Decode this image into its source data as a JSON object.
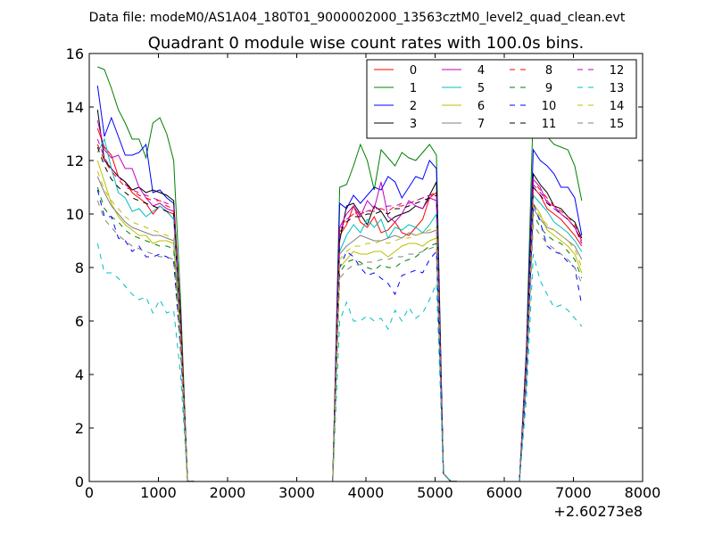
{
  "suptitle": "Data file: modeM0/AS1A04_180T01_9000002000_13563cztM0_level2_quad_clean.evt",
  "chart_data": {
    "type": "line",
    "title": "Quadrant 0 module wise count rates with 100.0s bins.",
    "xlabel": "",
    "ylabel": "",
    "x_offset_label": "+2.60273e8",
    "xlim": [
      0,
      8000
    ],
    "ylim": [
      0,
      16
    ],
    "x_ticks": [
      0,
      1000,
      2000,
      3000,
      4000,
      5000,
      6000,
      7000,
      8000
    ],
    "y_ticks": [
      0,
      2,
      4,
      6,
      8,
      10,
      12,
      14,
      16
    ],
    "grid": false,
    "legend_position": "top-right",
    "legend_columns": 4,
    "x": [
      120,
      220,
      320,
      420,
      520,
      620,
      720,
      820,
      920,
      1020,
      1120,
      1220,
      1320,
      1420,
      1520,
      1620,
      1720,
      1820,
      1920,
      2020,
      2120,
      2220,
      2320,
      2420,
      2520,
      2620,
      2720,
      2820,
      2920,
      3020,
      3120,
      3220,
      3320,
      3420,
      3520,
      3620,
      3720,
      3820,
      3920,
      4020,
      4120,
      4220,
      4320,
      4420,
      4520,
      4620,
      4720,
      4820,
      4920,
      5020,
      5120,
      5220,
      5320,
      5420,
      5520,
      5620,
      5720,
      5820,
      5920,
      6020,
      6120,
      6220,
      6320,
      6420,
      6520,
      6620,
      6720,
      6820,
      6920,
      7020,
      7120
    ],
    "series": [
      {
        "name": "0",
        "color": "#ff0000",
        "dash": "solid",
        "values": [
          13.2,
          12.5,
          12.2,
          11.4,
          11.2,
          10.8,
          10.6,
          10.4,
          10.0,
          10.3,
          10.1,
          10.0,
          6.0,
          0.02,
          0,
          0,
          0,
          0,
          0,
          0,
          0,
          0,
          0,
          0,
          0,
          0,
          0,
          0,
          0,
          0,
          0,
          0,
          0,
          0,
          0,
          9.2,
          9.6,
          10.3,
          9.7,
          9.5,
          9.9,
          9.3,
          9.4,
          9.7,
          9.3,
          9.2,
          9.5,
          9.8,
          10.6,
          10.8,
          0.3,
          0.02,
          0,
          0,
          0,
          0,
          0,
          0,
          0,
          0,
          0,
          0,
          4.5,
          11.0,
          10.7,
          10.2,
          10.0,
          9.8,
          9.5,
          9.2,
          8.8
        ]
      },
      {
        "name": "1",
        "color": "#008000",
        "dash": "solid",
        "values": [
          15.5,
          15.4,
          14.7,
          13.9,
          13.4,
          12.8,
          12.8,
          12.1,
          13.4,
          13.6,
          13.0,
          12.0,
          6.8,
          0.02,
          0,
          0,
          0,
          0,
          0,
          0,
          0,
          0,
          0,
          0,
          0,
          0,
          0,
          0,
          0,
          0,
          0,
          0,
          0,
          0,
          0,
          11.0,
          11.1,
          11.8,
          12.6,
          12.0,
          10.9,
          12.4,
          12.1,
          11.8,
          12.3,
          12.1,
          12.0,
          12.3,
          12.6,
          12.2,
          0.3,
          0.02,
          0,
          0,
          0,
          0,
          0,
          0,
          0,
          0,
          0,
          0,
          5.0,
          14.0,
          13.5,
          12.9,
          12.6,
          12.5,
          12.4,
          11.8,
          10.5
        ]
      },
      {
        "name": "2",
        "color": "#0000ff",
        "dash": "solid",
        "values": [
          14.8,
          12.9,
          13.6,
          12.9,
          12.2,
          12.2,
          12.3,
          12.6,
          10.8,
          10.9,
          10.6,
          10.4,
          6.2,
          0.02,
          0,
          0,
          0,
          0,
          0,
          0,
          0,
          0,
          0,
          0,
          0,
          0,
          0,
          0,
          0,
          0,
          0,
          0,
          0,
          0,
          0,
          10.4,
          10.2,
          10.7,
          10.4,
          10.7,
          11.0,
          10.9,
          11.4,
          11.2,
          10.6,
          11.0,
          11.4,
          11.3,
          12.0,
          11.7,
          0.3,
          0.02,
          0,
          0,
          0,
          0,
          0,
          0,
          0,
          0,
          0,
          0,
          4.8,
          12.4,
          12.0,
          11.8,
          11.5,
          11.0,
          11.0,
          10.6,
          9.2
        ]
      },
      {
        "name": "3",
        "color": "#000000",
        "dash": "solid",
        "values": [
          13.9,
          12.0,
          11.7,
          11.4,
          11.2,
          10.9,
          11.0,
          10.8,
          10.9,
          10.8,
          10.7,
          10.5,
          6.1,
          0.02,
          0,
          0,
          0,
          0,
          0,
          0,
          0,
          0,
          0,
          0,
          0,
          0,
          0,
          0,
          0,
          0,
          0,
          0,
          0,
          0,
          0,
          9.0,
          10.3,
          10.4,
          10.0,
          9.6,
          10.3,
          10.1,
          9.7,
          9.9,
          10.0,
          10.1,
          10.3,
          10.2,
          10.7,
          11.2,
          0.3,
          0.02,
          0,
          0,
          0,
          0,
          0,
          0,
          0,
          0,
          0,
          0,
          4.6,
          11.5,
          11.1,
          10.8,
          10.3,
          10.2,
          9.9,
          9.7,
          9.1
        ]
      },
      {
        "name": "4",
        "color": "#bf00bf",
        "dash": "solid",
        "values": [
          13.5,
          12.4,
          12.1,
          12.2,
          11.7,
          11.7,
          11.0,
          10.6,
          10.3,
          10.4,
          10.2,
          10.1,
          5.9,
          0.02,
          0,
          0,
          0,
          0,
          0,
          0,
          0,
          0,
          0,
          0,
          0,
          0,
          0,
          0,
          0,
          0,
          0,
          0,
          0,
          0,
          0,
          9.5,
          10.0,
          10.3,
          9.9,
          10.5,
          10.2,
          11.2,
          9.9,
          9.7,
          10.0,
          10.5,
          10.3,
          10.2,
          10.6,
          10.5,
          0.3,
          0.02,
          0,
          0,
          0,
          0,
          0,
          0,
          0,
          0,
          0,
          0,
          4.4,
          11.3,
          11.0,
          10.4,
          10.3,
          10.0,
          9.8,
          9.5,
          9.0
        ]
      },
      {
        "name": "5",
        "color": "#00bfbf",
        "dash": "solid",
        "values": [
          12.3,
          12.8,
          11.7,
          10.8,
          10.6,
          10.1,
          10.2,
          9.9,
          10.1,
          10.3,
          10.1,
          9.8,
          5.8,
          0.02,
          0,
          0,
          0,
          0,
          0,
          0,
          0,
          0,
          0,
          0,
          0,
          0,
          0,
          0,
          0,
          0,
          0,
          0,
          0,
          0,
          0,
          8.6,
          9.2,
          9.6,
          9.3,
          9.8,
          9.5,
          9.8,
          9.1,
          9.5,
          9.4,
          9.6,
          9.5,
          9.3,
          9.6,
          10.0,
          0.3,
          0.02,
          0,
          0,
          0,
          0,
          0,
          0,
          0,
          0,
          0,
          0,
          4.2,
          10.7,
          10.4,
          10.1,
          9.7,
          9.5,
          9.3,
          9.0,
          8.6
        ]
      },
      {
        "name": "6",
        "color": "#bfbf00",
        "dash": "solid",
        "values": [
          12.0,
          11.2,
          10.4,
          9.9,
          9.6,
          9.4,
          9.2,
          9.2,
          8.9,
          9.0,
          9.0,
          8.9,
          5.4,
          0.02,
          0,
          0,
          0,
          0,
          0,
          0,
          0,
          0,
          0,
          0,
          0,
          0,
          0,
          0,
          0,
          0,
          0,
          0,
          0,
          0,
          0,
          8.0,
          8.3,
          8.6,
          8.5,
          8.5,
          8.6,
          8.6,
          8.4,
          8.6,
          8.8,
          8.9,
          8.9,
          8.8,
          9.0,
          9.1,
          0.3,
          0.02,
          0,
          0,
          0,
          0,
          0,
          0,
          0,
          0,
          0,
          0,
          4.0,
          10.4,
          10.0,
          9.4,
          9.2,
          9.0,
          8.8,
          8.5,
          7.8
        ]
      },
      {
        "name": "7",
        "color": "#808080",
        "dash": "solid",
        "values": [
          11.4,
          10.8,
          10.3,
          10.0,
          9.7,
          9.5,
          9.4,
          9.3,
          9.2,
          9.2,
          9.1,
          9.0,
          5.4,
          0.02,
          0,
          0,
          0,
          0,
          0,
          0,
          0,
          0,
          0,
          0,
          0,
          0,
          0,
          0,
          0,
          0,
          0,
          0,
          0,
          0,
          0,
          8.5,
          8.8,
          9.0,
          9.2,
          9.1,
          9.0,
          9.0,
          9.1,
          9.2,
          9.1,
          9.3,
          9.2,
          9.3,
          9.3,
          9.4,
          0.3,
          0.02,
          0,
          0,
          0,
          0,
          0,
          0,
          0,
          0,
          0,
          0,
          4.0,
          10.2,
          9.8,
          9.5,
          9.4,
          9.2,
          9.0,
          8.8,
          8.3
        ]
      },
      {
        "name": "8",
        "color": "#ff0000",
        "dash": "dashed",
        "values": [
          12.6,
          12.0,
          11.6,
          11.3,
          11.0,
          10.9,
          10.7,
          10.6,
          10.5,
          10.5,
          10.3,
          10.2,
          6.0,
          0.02,
          0,
          0,
          0,
          0,
          0,
          0,
          0,
          0,
          0,
          0,
          0,
          0,
          0,
          0,
          0,
          0,
          0,
          0,
          0,
          0,
          0,
          9.5,
          9.8,
          10.0,
          10.0,
          10.1,
          10.1,
          10.2,
          10.1,
          10.3,
          10.3,
          10.4,
          10.5,
          10.6,
          10.7,
          10.8,
          0.3,
          0.02,
          0,
          0,
          0,
          0,
          0,
          0,
          0,
          0,
          0,
          0,
          4.6,
          11.2,
          10.9,
          10.6,
          10.3,
          10.1,
          9.9,
          9.6,
          9.0
        ]
      },
      {
        "name": "9",
        "color": "#008000",
        "dash": "dashed",
        "values": [
          11.0,
          10.2,
          9.9,
          9.7,
          9.4,
          9.2,
          9.1,
          9.0,
          8.9,
          8.8,
          8.8,
          8.7,
          5.2,
          0.02,
          0,
          0,
          0,
          0,
          0,
          0,
          0,
          0,
          0,
          0,
          0,
          0,
          0,
          0,
          0,
          0,
          0,
          0,
          0,
          0,
          0,
          7.8,
          8.2,
          8.3,
          8.2,
          8.0,
          7.9,
          8.1,
          8.0,
          8.0,
          8.2,
          8.3,
          8.4,
          8.6,
          8.8,
          8.9,
          0.3,
          0.02,
          0,
          0,
          0,
          0,
          0,
          0,
          0,
          0,
          0,
          0,
          3.9,
          10.0,
          9.5,
          9.2,
          9.0,
          8.9,
          8.6,
          8.3,
          7.6
        ]
      },
      {
        "name": "10",
        "color": "#0000ff",
        "dash": "dashed",
        "values": [
          10.9,
          9.9,
          9.9,
          9.1,
          9.0,
          8.6,
          8.8,
          8.4,
          8.4,
          8.5,
          8.4,
          8.2,
          4.9,
          0.02,
          0,
          0,
          0,
          0,
          0,
          0,
          0,
          0,
          0,
          0,
          0,
          0,
          0,
          0,
          0,
          0,
          0,
          0,
          0,
          0,
          0,
          8.0,
          8.6,
          8.4,
          8.0,
          7.7,
          7.8,
          7.6,
          7.4,
          7.0,
          7.7,
          7.8,
          7.9,
          7.8,
          8.3,
          8.6,
          0.3,
          0.02,
          0,
          0,
          0,
          0,
          0,
          0,
          0,
          0,
          0,
          0,
          3.7,
          10.4,
          9.7,
          8.8,
          8.6,
          8.5,
          8.2,
          8.0,
          6.6
        ]
      },
      {
        "name": "11",
        "color": "#000000",
        "dash": "dashed",
        "values": [
          12.5,
          11.8,
          11.3,
          11.0,
          10.8,
          10.6,
          10.5,
          10.4,
          10.3,
          10.2,
          10.1,
          10.0,
          5.9,
          0.02,
          0,
          0,
          0,
          0,
          0,
          0,
          0,
          0,
          0,
          0,
          0,
          0,
          0,
          0,
          0,
          0,
          0,
          0,
          0,
          0,
          0,
          9.3,
          9.7,
          9.9,
          9.9,
          10.0,
          10.0,
          10.1,
          10.0,
          10.2,
          10.2,
          10.3,
          10.4,
          10.5,
          10.6,
          10.7,
          0.3,
          0.02,
          0,
          0,
          0,
          0,
          0,
          0,
          0,
          0,
          0,
          0,
          4.5,
          11.0,
          10.7,
          10.4,
          10.2,
          10.0,
          9.8,
          9.5,
          8.9
        ]
      },
      {
        "name": "12",
        "color": "#bf00bf",
        "dash": "dashed",
        "values": [
          12.8,
          12.1,
          11.7,
          11.4,
          11.1,
          10.9,
          10.8,
          10.7,
          10.6,
          10.5,
          10.4,
          10.3,
          6.0,
          0.02,
          0,
          0,
          0,
          0,
          0,
          0,
          0,
          0,
          0,
          0,
          0,
          0,
          0,
          0,
          0,
          0,
          0,
          0,
          0,
          0,
          0,
          9.4,
          9.8,
          10.0,
          10.1,
          10.1,
          10.2,
          10.2,
          10.3,
          10.3,
          10.4,
          10.4,
          10.5,
          10.6,
          10.7,
          10.7,
          0.3,
          0.02,
          0,
          0,
          0,
          0,
          0,
          0,
          0,
          0,
          0,
          0,
          4.6,
          11.1,
          10.8,
          10.5,
          10.2,
          10.0,
          9.8,
          9.5,
          8.9
        ]
      },
      {
        "name": "13",
        "color": "#00bfbf",
        "dash": "dashed",
        "values": [
          8.9,
          7.8,
          7.8,
          7.6,
          7.3,
          7.0,
          6.8,
          6.9,
          6.3,
          6.8,
          6.3,
          6.4,
          4.0,
          0.02,
          0,
          0,
          0,
          0,
          0,
          0,
          0,
          0,
          0,
          0,
          0,
          0,
          0,
          0,
          0,
          0,
          0,
          0,
          0,
          0,
          0,
          6.0,
          6.7,
          6.0,
          6.0,
          6.2,
          6.0,
          6.1,
          5.7,
          6.4,
          6.0,
          6.5,
          6.1,
          6.3,
          6.8,
          7.4,
          0.3,
          0.02,
          0,
          0,
          0,
          0,
          0,
          0,
          0,
          0,
          0,
          0,
          3.1,
          8.5,
          7.5,
          7.0,
          6.5,
          6.6,
          6.4,
          6.1,
          5.8
        ]
      },
      {
        "name": "14",
        "color": "#bfbf00",
        "dash": "dashed",
        "values": [
          11.6,
          10.9,
          10.5,
          10.2,
          9.9,
          9.7,
          9.6,
          9.5,
          9.4,
          9.3,
          9.2,
          9.1,
          5.4,
          0.02,
          0,
          0,
          0,
          0,
          0,
          0,
          0,
          0,
          0,
          0,
          0,
          0,
          0,
          0,
          0,
          0,
          0,
          0,
          0,
          0,
          0,
          8.3,
          8.6,
          8.8,
          8.8,
          8.9,
          8.9,
          9.0,
          8.9,
          9.0,
          9.1,
          9.1,
          9.2,
          9.3,
          9.4,
          9.5,
          0.3,
          0.02,
          0,
          0,
          0,
          0,
          0,
          0,
          0,
          0,
          0,
          0,
          4.1,
          10.3,
          9.9,
          9.6,
          9.4,
          9.2,
          9.0,
          8.7,
          8.0
        ]
      },
      {
        "name": "15",
        "color": "#808080",
        "dash": "dashed",
        "values": [
          10.5,
          9.8,
          9.5,
          9.2,
          9.0,
          8.8,
          8.7,
          8.6,
          8.5,
          8.4,
          8.4,
          8.3,
          5.0,
          0.02,
          0,
          0,
          0,
          0,
          0,
          0,
          0,
          0,
          0,
          0,
          0,
          0,
          0,
          0,
          0,
          0,
          0,
          0,
          0,
          0,
          0,
          7.6,
          7.9,
          8.1,
          8.1,
          8.2,
          8.2,
          8.3,
          8.3,
          8.4,
          8.4,
          8.5,
          8.5,
          8.6,
          8.7,
          8.8,
          0.3,
          0.02,
          0,
          0,
          0,
          0,
          0,
          0,
          0,
          0,
          0,
          0,
          3.8,
          9.6,
          9.2,
          8.9,
          8.7,
          8.5,
          8.3,
          8.0,
          7.4
        ]
      }
    ]
  }
}
